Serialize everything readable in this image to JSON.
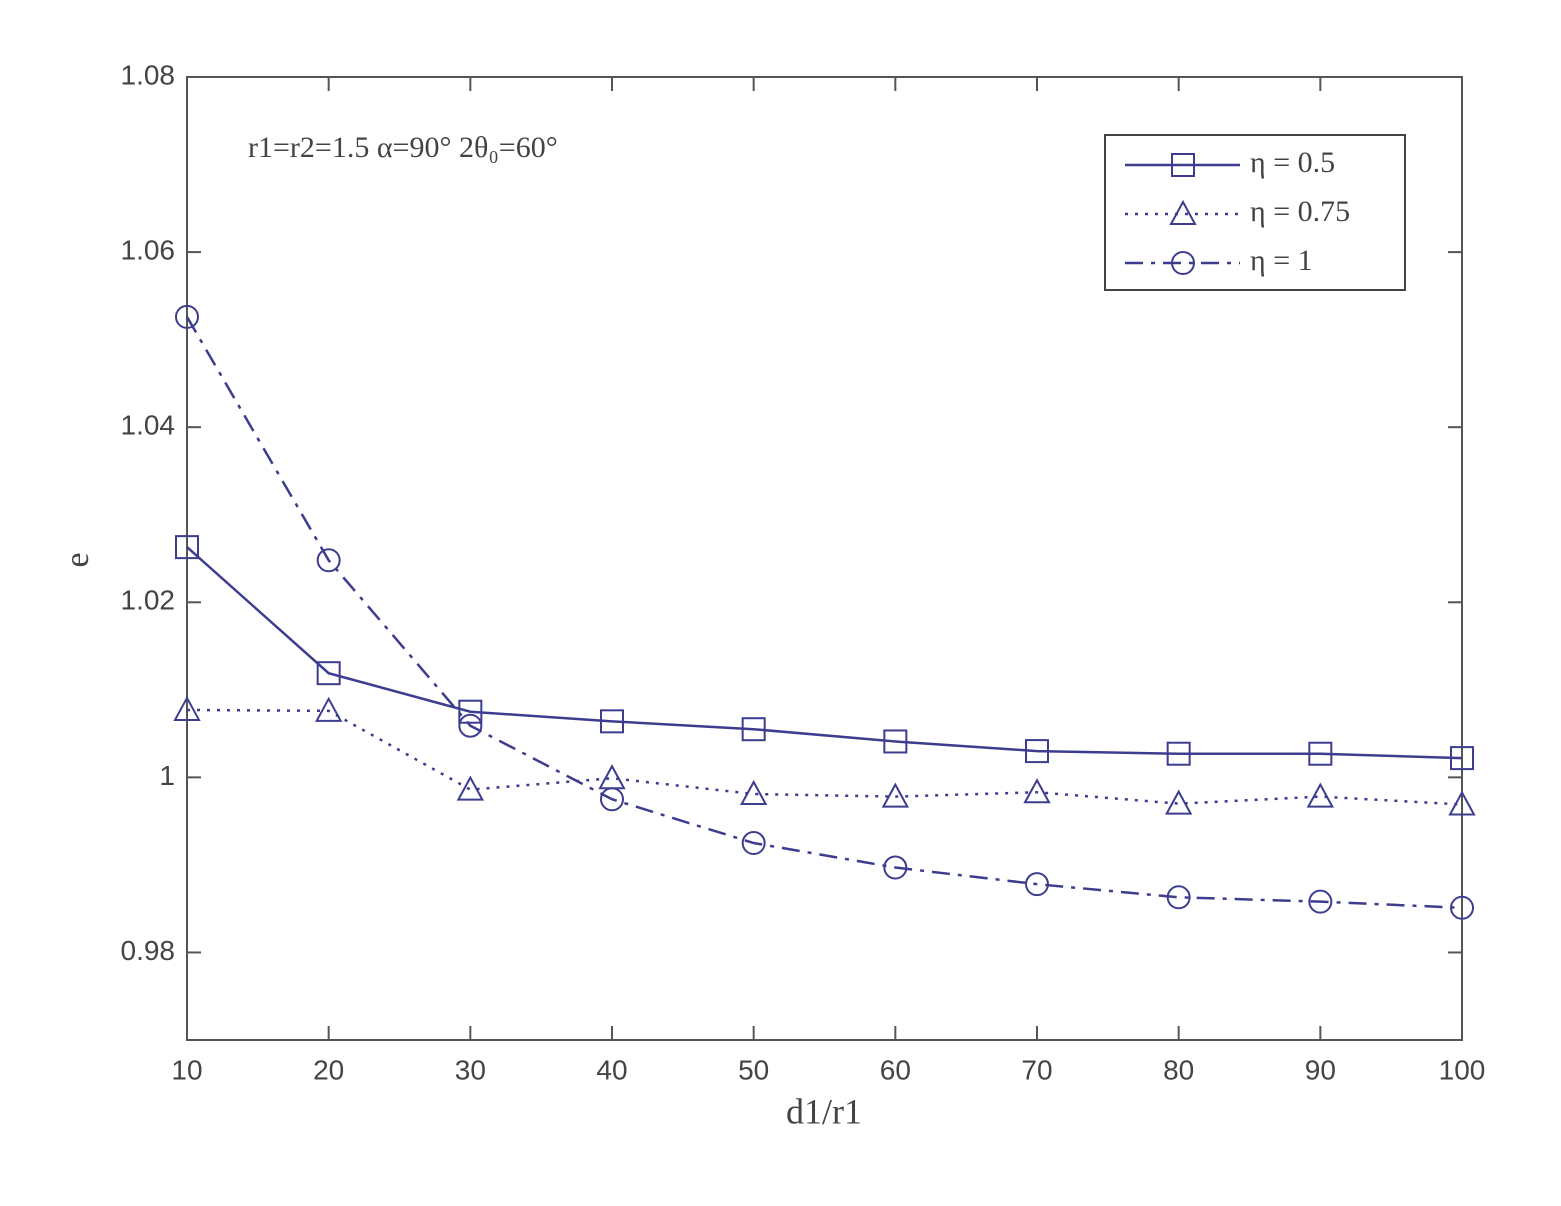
{
  "chart_data": {
    "type": "line",
    "x_label": "d1/r1",
    "y_label": "e",
    "annotation": "r1=r2=1.5 α=90° 2θ₀=60°",
    "x": [
      10,
      20,
      30,
      40,
      50,
      60,
      70,
      80,
      90,
      100
    ],
    "xlim": [
      10,
      100
    ],
    "xticks": [
      10,
      20,
      30,
      40,
      50,
      60,
      70,
      80,
      90,
      100
    ],
    "ylim": [
      0.97,
      1.08
    ],
    "yticks": [
      0.98,
      1,
      1.02,
      1.04,
      1.06,
      1.08
    ],
    "legend": "upper right",
    "grid": false,
    "series": [
      {
        "name": "η = 0.5",
        "color": "#3d3d8f",
        "marker": "square",
        "dash": "solid",
        "values": [
          1.0263,
          1.0119,
          1.0075,
          1.0064,
          1.0055,
          1.0041,
          1.003,
          1.0027,
          1.0027,
          1.0022
        ]
      },
      {
        "name": "η = 0.75",
        "color": "#3d3d8f",
        "marker": "triangle",
        "dash": "dotted",
        "values": [
          1.0077,
          1.0076,
          0.9986,
          0.9999,
          0.9981,
          0.9978,
          0.9983,
          0.997,
          0.9978,
          0.9969
        ]
      },
      {
        "name": "η = 1",
        "color": "#3d3d8f",
        "marker": "circle",
        "dash": "dashdot",
        "values": [
          1.0526,
          1.0248,
          1.0059,
          0.9975,
          0.9925,
          0.9897,
          0.9878,
          0.9863,
          0.9858,
          0.9851
        ]
      }
    ]
  }
}
